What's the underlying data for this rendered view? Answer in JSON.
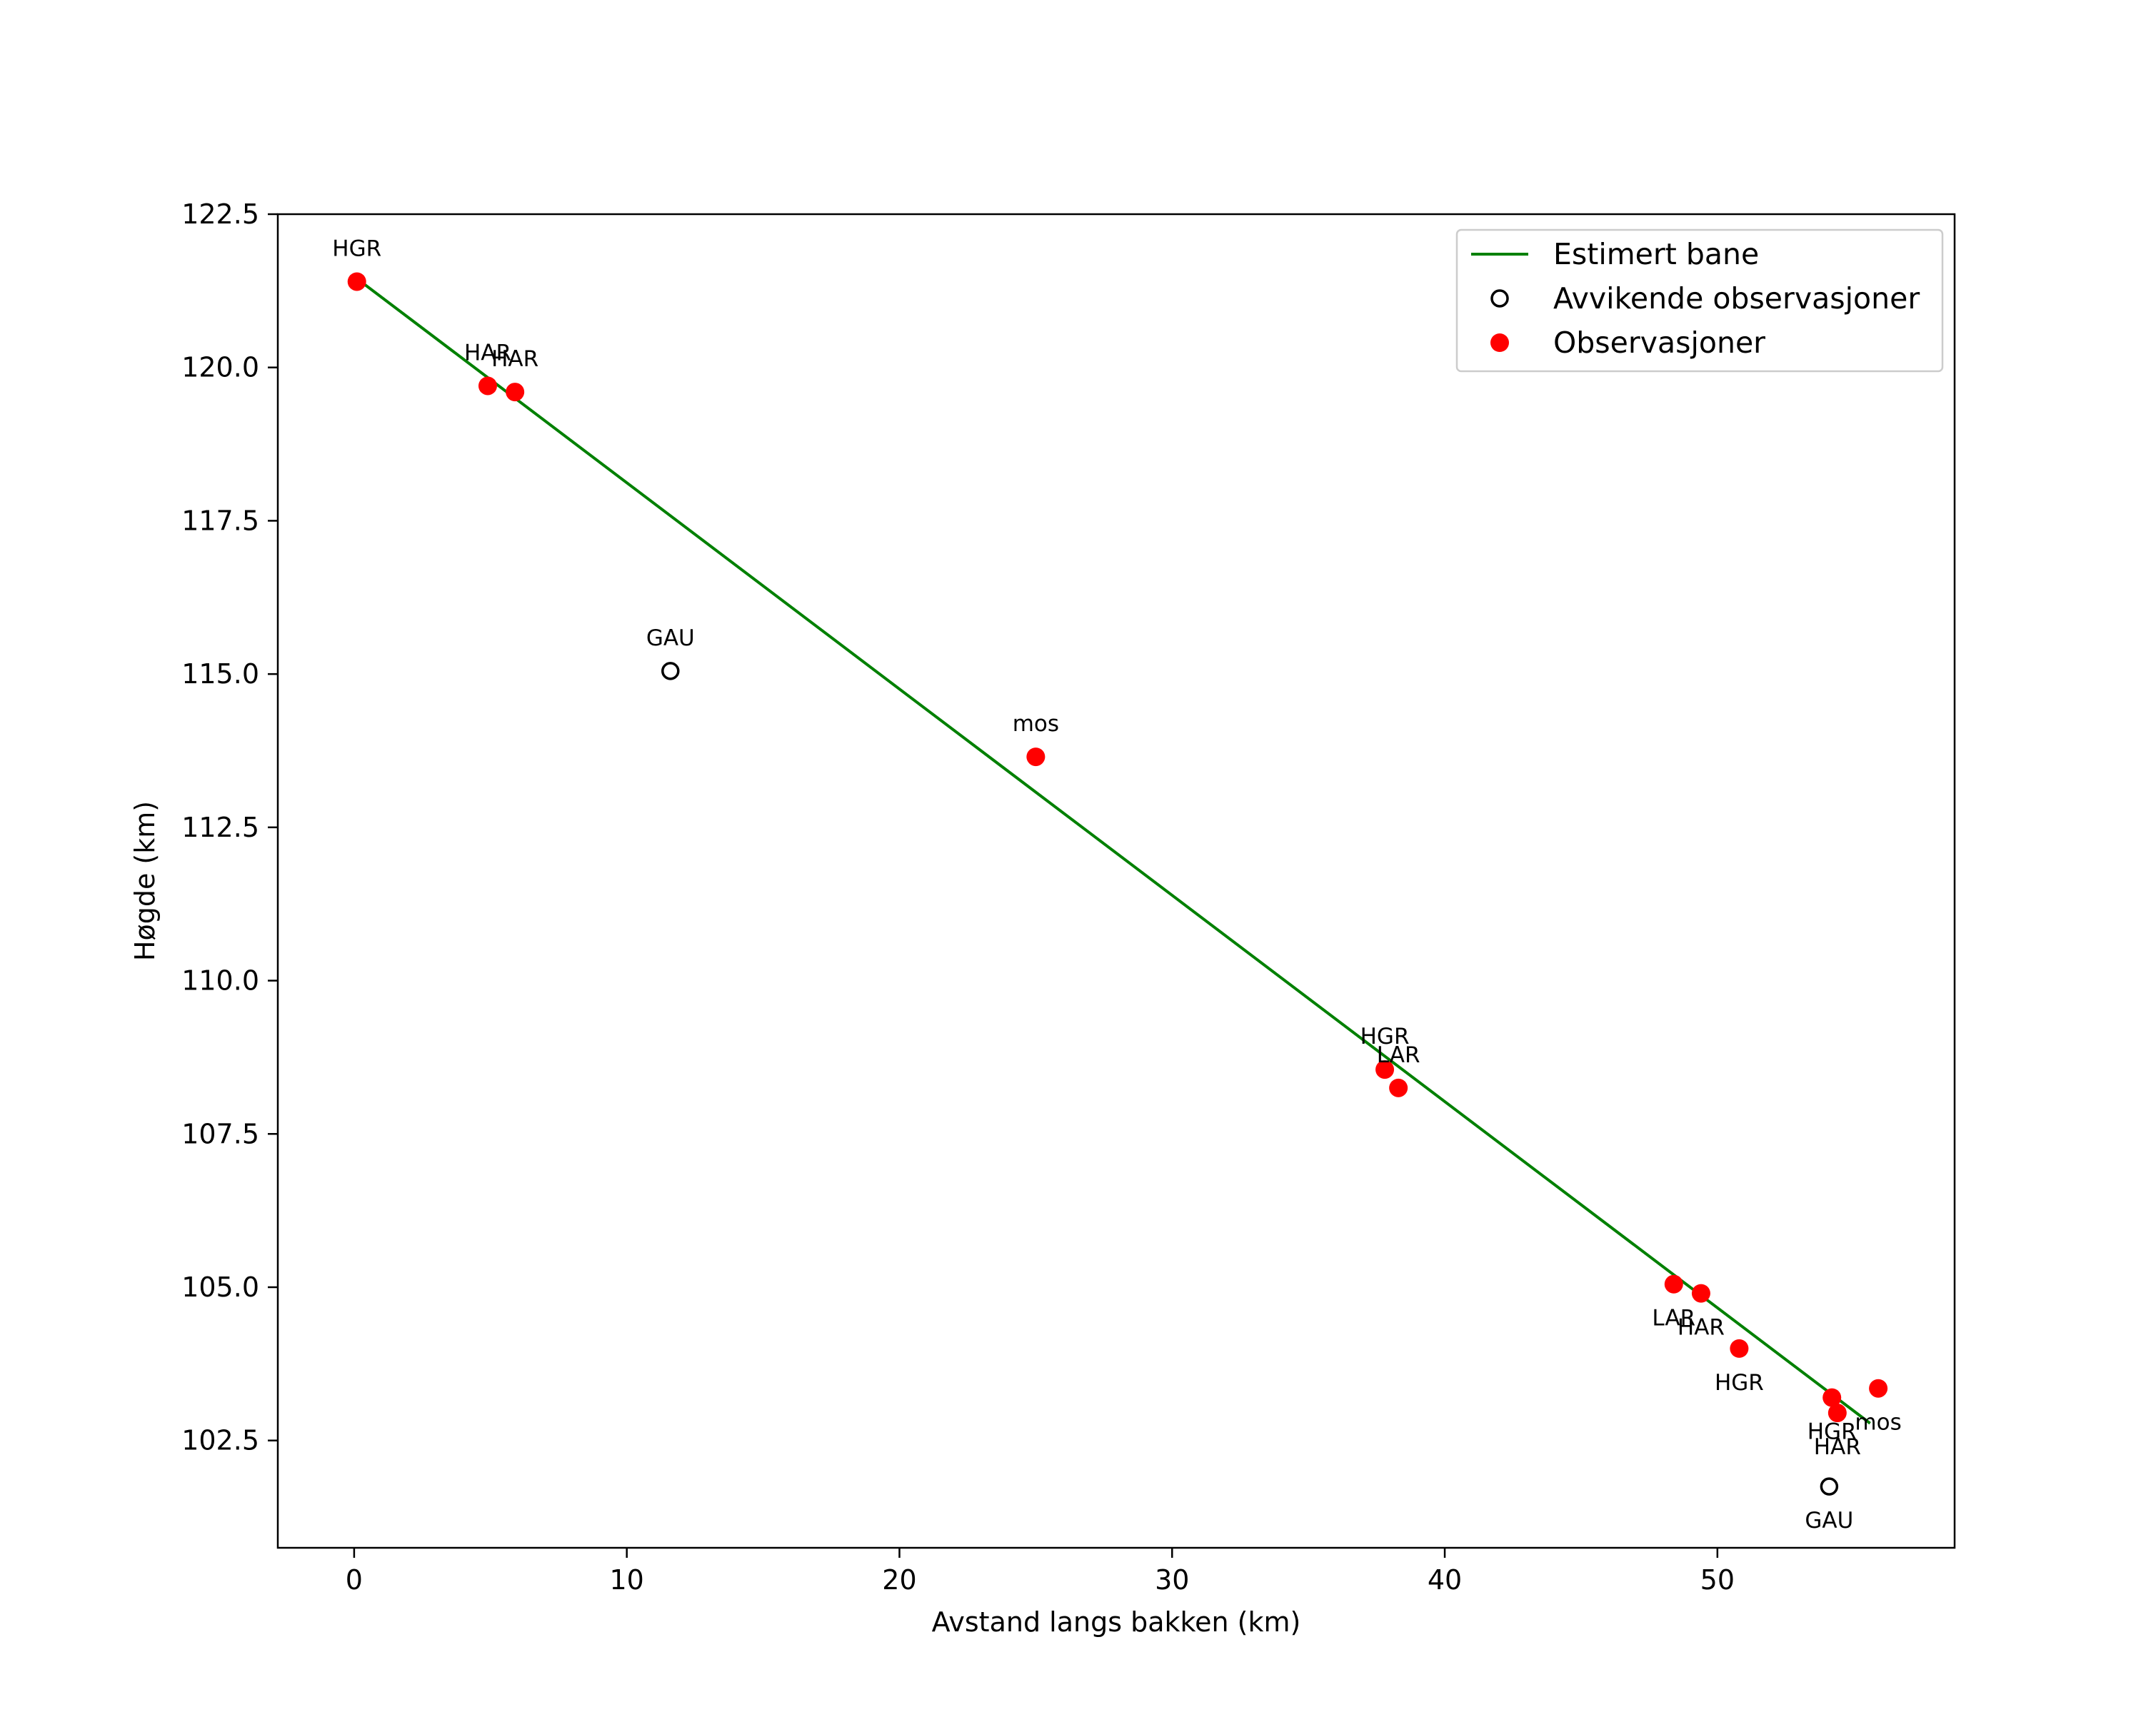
{
  "chart_data": {
    "type": "scatter",
    "title": "",
    "xlabel": "Avstand langs bakken (km)",
    "ylabel": "Høgde (km)",
    "xlim": [
      -2.8,
      58.7
    ],
    "ylim": [
      100.75,
      122.5
    ],
    "xticks": [
      0,
      10,
      20,
      30,
      40,
      50
    ],
    "xtick_labels": [
      "0",
      "10",
      "20",
      "30",
      "40",
      "50"
    ],
    "yticks": [
      102.5,
      105.0,
      107.5,
      110.0,
      112.5,
      115.0,
      117.5,
      120.0,
      122.5
    ],
    "ytick_labels": [
      "102.5",
      "105.0",
      "107.5",
      "110.0",
      "112.5",
      "115.0",
      "117.5",
      "120.0",
      "122.5"
    ],
    "grid": false,
    "legend_position": "top-right",
    "colors": {
      "line": "#008000",
      "observation": "#ff0000",
      "outlier_edge": "#000000",
      "axes": "#000000"
    },
    "series": [
      {
        "name": "Estimert bane",
        "kind": "line",
        "x": [
          0.1,
          55.6
        ],
        "y": [
          121.45,
          102.78
        ]
      },
      {
        "name": "Avvikende observasjoner",
        "kind": "outlier",
        "points": [
          {
            "x": 11.6,
            "y": 115.05,
            "label": "GAU",
            "label_pos": "above"
          },
          {
            "x": 54.1,
            "y": 101.75,
            "label": "GAU",
            "label_pos": "below"
          }
        ]
      },
      {
        "name": "Observasjoner",
        "kind": "observation",
        "points": [
          {
            "x": 0.1,
            "y": 121.4,
            "label": "HGR",
            "label_pos": "above"
          },
          {
            "x": 4.9,
            "y": 119.7,
            "label": "HAR",
            "label_pos": "above"
          },
          {
            "x": 5.9,
            "y": 119.6,
            "label": "HAR",
            "label_pos": "above"
          },
          {
            "x": 25.0,
            "y": 113.65,
            "label": "mos",
            "label_pos": "above"
          },
          {
            "x": 37.8,
            "y": 108.55,
            "label": "HGR",
            "label_pos": "above"
          },
          {
            "x": 38.3,
            "y": 108.25,
            "label": "LAR",
            "label_pos": "above"
          },
          {
            "x": 48.4,
            "y": 105.05,
            "label": "LAR",
            "label_pos": "below"
          },
          {
            "x": 49.4,
            "y": 104.9,
            "label": "HAR",
            "label_pos": "below"
          },
          {
            "x": 50.8,
            "y": 104.0,
            "label": "HGR",
            "label_pos": "below"
          },
          {
            "x": 54.2,
            "y": 103.2,
            "label": "HGR",
            "label_pos": "below"
          },
          {
            "x": 54.4,
            "y": 102.95,
            "label": "HAR",
            "label_pos": "below"
          },
          {
            "x": 55.9,
            "y": 103.35,
            "label": "mos",
            "label_pos": "below"
          }
        ]
      }
    ]
  }
}
